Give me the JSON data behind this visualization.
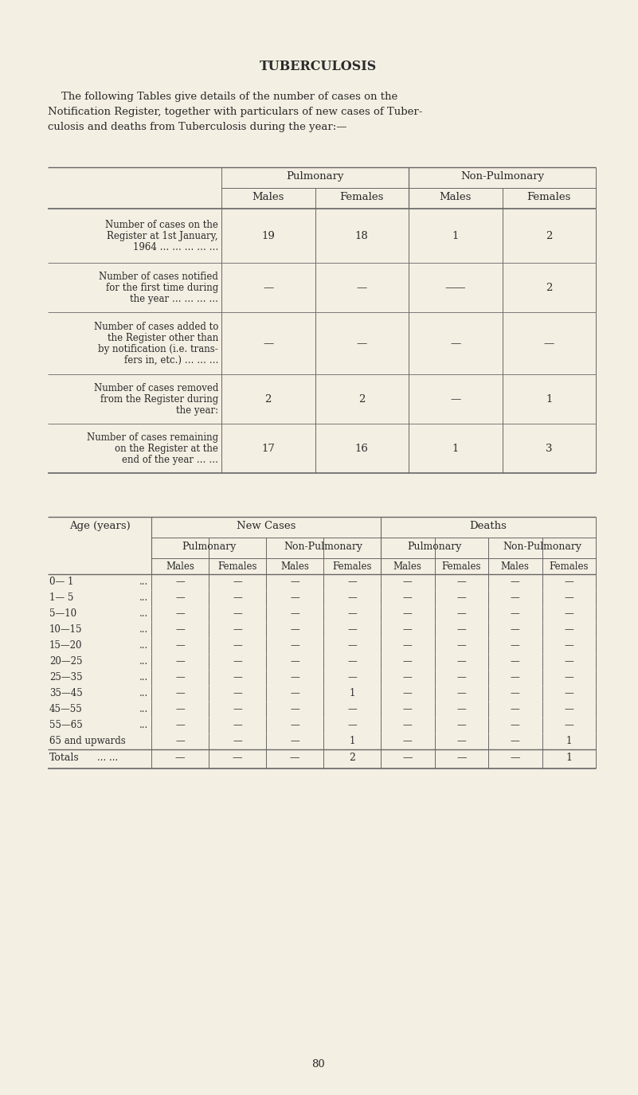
{
  "title": "TUBERCULOSIS",
  "intro_lines": [
    "    The following Tables give details of the number of cases on the",
    "Notification Register, together with particulars of new cases of Tuber-",
    "culosis and deaths from Tuberculosis during the year:—"
  ],
  "table1_col_groups": [
    "Pulmonary",
    "Non-Pulmonary"
  ],
  "table1_col_headers": [
    "Males",
    "Females",
    "Males",
    "Females"
  ],
  "table1_rows": [
    {
      "label": [
        "Number of cases on the",
        "Register at 1st January,",
        "1964 … … … … …"
      ],
      "values": [
        "19",
        "18",
        "1",
        "2"
      ]
    },
    {
      "label": [
        "Number of cases notified",
        "for the first time during",
        "the year … … … …"
      ],
      "values": [
        "—",
        "—",
        "——",
        "2"
      ]
    },
    {
      "label": [
        "Number of cases added to",
        "the Register other than",
        "by notification (i.e. trans-",
        "fers in, etc.) … … …"
      ],
      "values": [
        "—",
        "—",
        "—",
        "—"
      ]
    },
    {
      "label": [
        "Number of cases removed",
        "from the Register during",
        "the year:"
      ],
      "values": [
        "2",
        "2",
        "—",
        "1"
      ]
    },
    {
      "label": [
        "Number of cases remaining",
        "on the Register at the",
        "end of the year … …"
      ],
      "values": [
        "17",
        "16",
        "1",
        "3"
      ]
    }
  ],
  "table2_age_rows": [
    {
      "label": "0— 1",
      "dots": "...",
      "values": [
        "—",
        "—",
        "—",
        "—",
        "—",
        "—",
        "—",
        "—"
      ]
    },
    {
      "label": "1— 5",
      "dots": "...",
      "values": [
        "—",
        "—",
        "—",
        "—",
        "—",
        "—",
        "—",
        "—"
      ]
    },
    {
      "label": "5—10",
      "dots": "...",
      "values": [
        "—",
        "—",
        "—",
        "—",
        "—",
        "—",
        "—",
        "—"
      ]
    },
    {
      "label": "10—15",
      "dots": "...",
      "values": [
        "—",
        "—",
        "—",
        "—",
        "—",
        "—",
        "—",
        "—"
      ]
    },
    {
      "label": "15—20",
      "dots": "...",
      "values": [
        "—",
        "—",
        "—",
        "—",
        "—",
        "—",
        "—",
        "—"
      ]
    },
    {
      "label": "20—25",
      "dots": "...",
      "values": [
        "—",
        "—",
        "—",
        "—",
        "—",
        "—",
        "—",
        "—"
      ]
    },
    {
      "label": "25—35",
      "dots": "...",
      "values": [
        "—",
        "—",
        "—",
        "—",
        "—",
        "—",
        "—",
        "—"
      ]
    },
    {
      "label": "35—45",
      "dots": "...",
      "values": [
        "—",
        "—",
        "—",
        "1",
        "—",
        "—",
        "—",
        "—"
      ]
    },
    {
      "label": "45—55",
      "dots": "...",
      "values": [
        "—",
        "—",
        "—",
        "—",
        "—",
        "—",
        "—",
        "—"
      ]
    },
    {
      "label": "55—65",
      "dots": "...",
      "values": [
        "—",
        "—",
        "—",
        "—",
        "—",
        "—",
        "—",
        "—"
      ]
    },
    {
      "label": "65 and upwards",
      "dots": "",
      "values": [
        "—",
        "—",
        "—",
        "1",
        "—",
        "—",
        "—",
        "1"
      ]
    }
  ],
  "table2_totals": [
    "—",
    "—",
    "—",
    "2",
    "—",
    "—",
    "—",
    "1"
  ],
  "page_number": "80",
  "bg_color": "#f4efe3",
  "text_color": "#2a2a2a",
  "line_color": "#666666"
}
